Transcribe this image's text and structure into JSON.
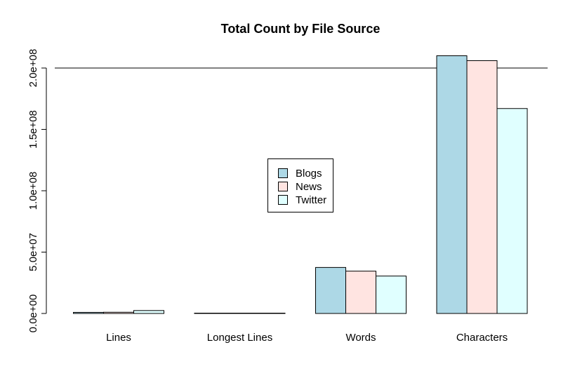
{
  "chart_data": {
    "type": "bar",
    "title": "Total Count by File Source",
    "xlabel": "",
    "ylabel": "",
    "categories": [
      "Lines",
      "Longest Lines",
      "Words",
      "Characters"
    ],
    "series": [
      {
        "name": "Blogs",
        "color": "#add8e6",
        "values": [
          900000,
          40000,
          37500000,
          210000000
        ]
      },
      {
        "name": "News",
        "color": "#ffe4e1",
        "values": [
          1000000,
          11000,
          34500000,
          206000000
        ]
      },
      {
        "name": "Twitter",
        "color": "#e0ffff",
        "values": [
          2400000,
          140,
          30500000,
          167000000
        ]
      }
    ],
    "y_ticks": [
      {
        "value": 0,
        "label": "0.0e+00"
      },
      {
        "value": 50000000,
        "label": "5.0e+07"
      },
      {
        "value": 100000000,
        "label": "1.0e+08"
      },
      {
        "value": 150000000,
        "label": "1.5e+08"
      },
      {
        "value": 200000000,
        "label": "2.0e+08"
      }
    ],
    "reference_line": 200000000,
    "ylim": [
      0,
      210000000
    ],
    "legend_position": "center",
    "grid": false
  }
}
